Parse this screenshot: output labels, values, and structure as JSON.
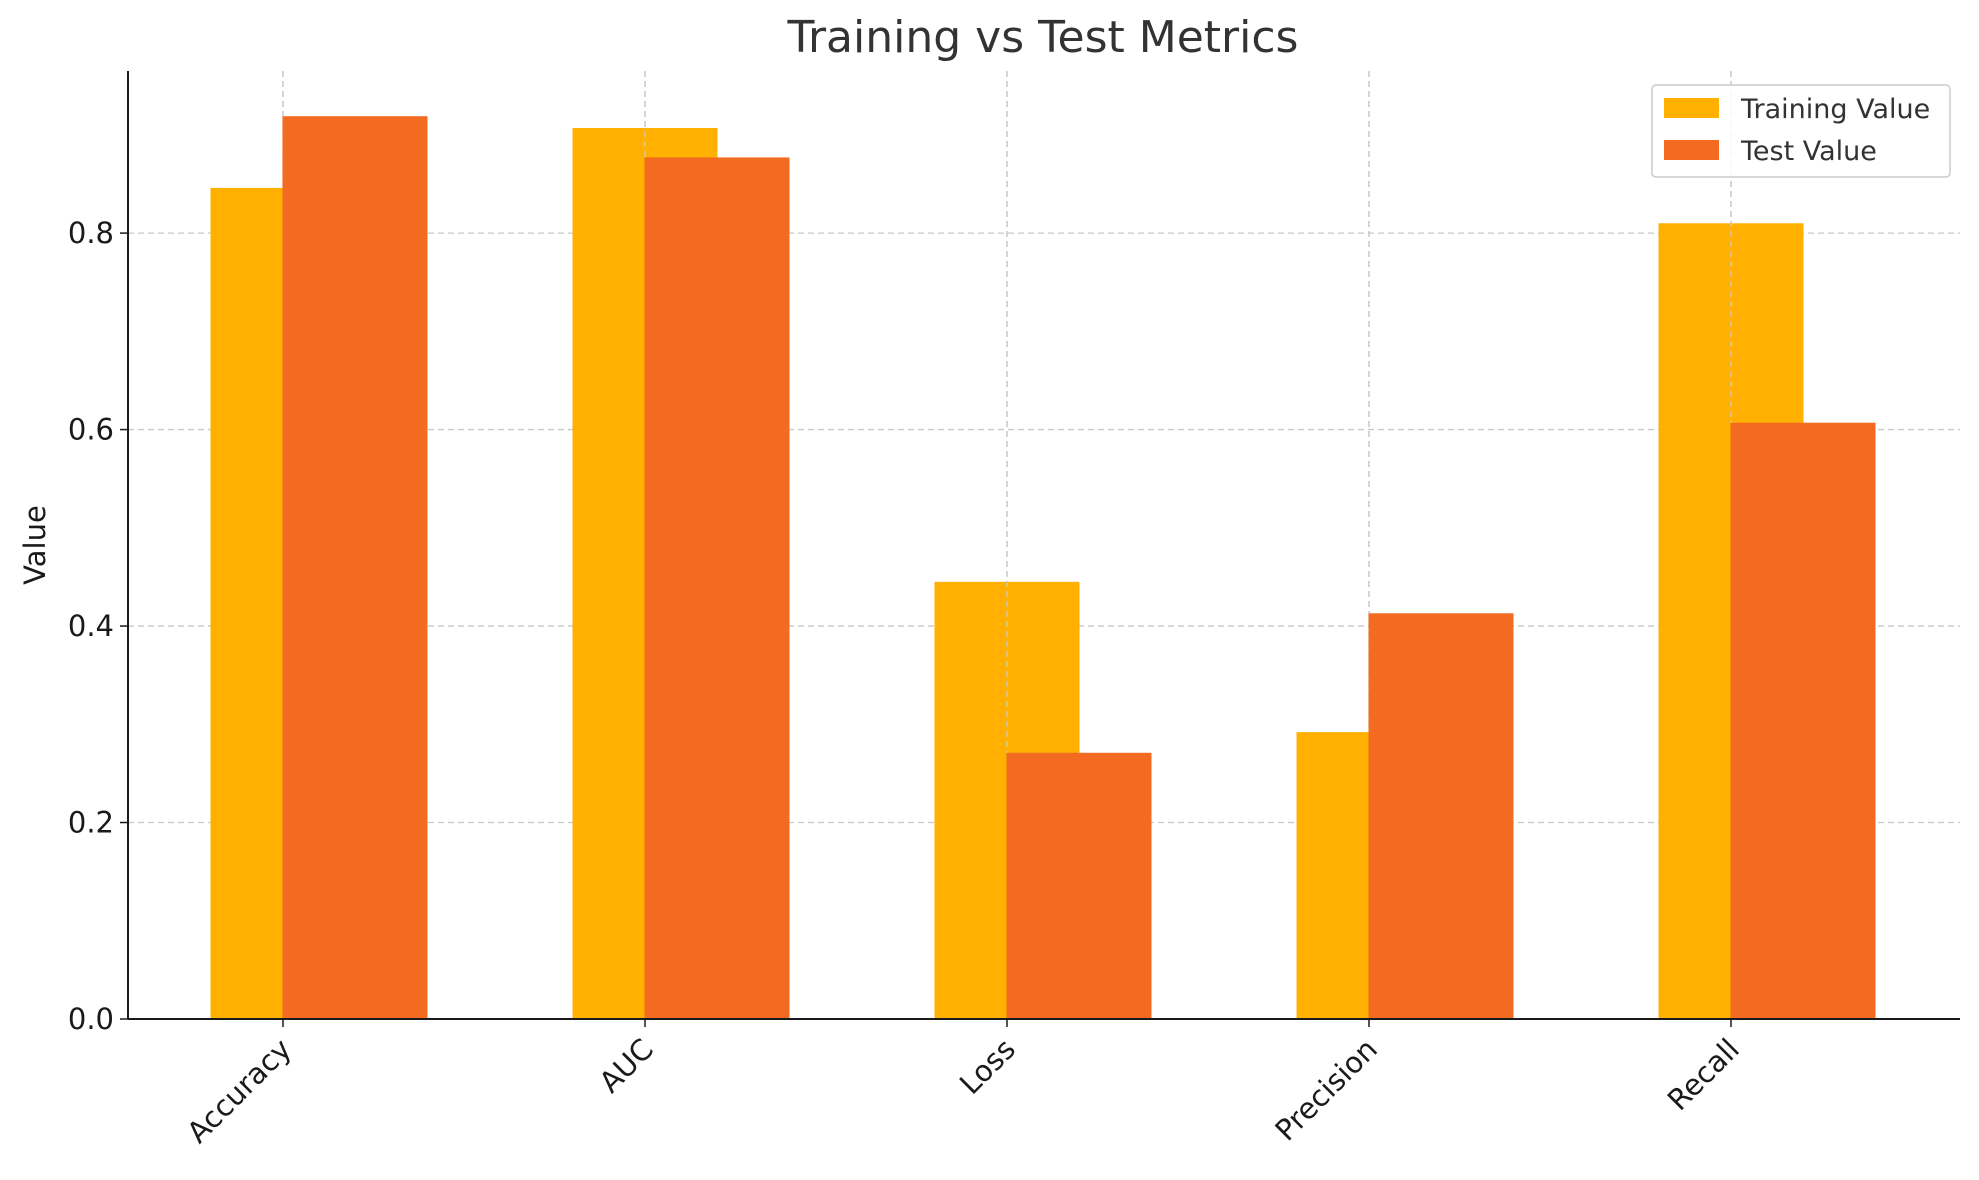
{
  "chart_data": {
    "type": "bar",
    "title": "Training vs Test Metrics",
    "xlabel": "",
    "ylabel": "Value",
    "categories": [
      "Accuracy",
      "AUC",
      "Loss",
      "Precision",
      "Recall"
    ],
    "series": [
      {
        "name": "Training Value",
        "color": "#FFB000",
        "values": [
          0.846,
          0.907,
          0.445,
          0.292,
          0.81
        ]
      },
      {
        "name": "Test Value",
        "color": "#F26B21",
        "values": [
          0.919,
          0.877,
          0.271,
          0.413,
          0.607
        ]
      }
    ],
    "ylim": [
      0,
      0.965
    ],
    "yticks": [
      "0.0",
      "0.2",
      "0.4",
      "0.6",
      "0.8"
    ],
    "ytick_values": [
      0,
      0.2,
      0.4,
      0.6,
      0.8
    ],
    "grid": true,
    "legend": "top-right"
  }
}
